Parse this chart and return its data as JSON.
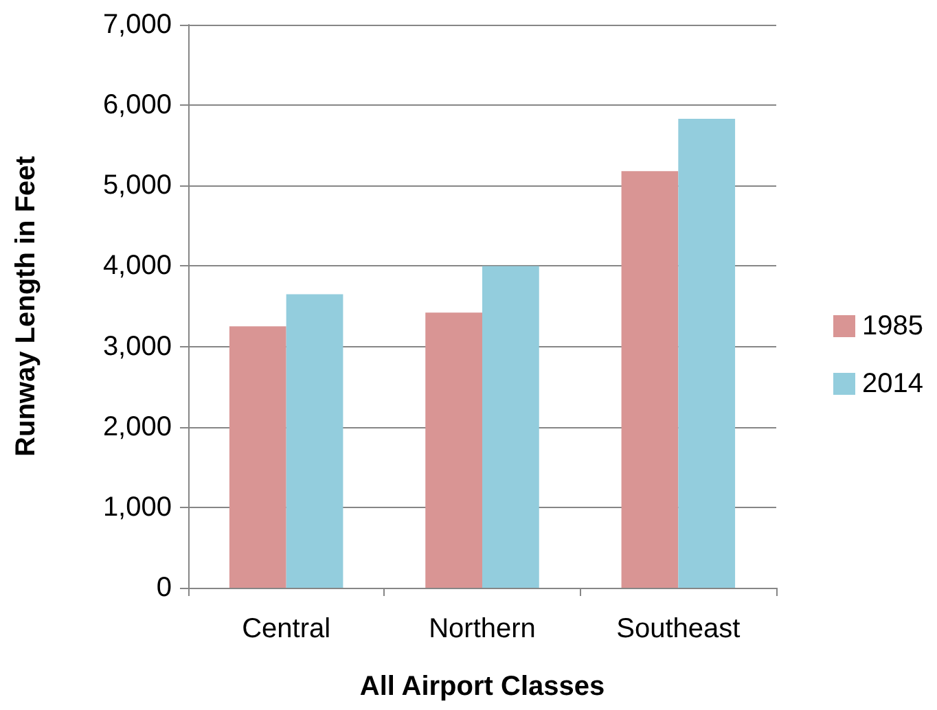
{
  "chart_data": {
    "type": "bar",
    "xlabel": "All Airport Classes",
    "ylabel": "Runway Length in Feet",
    "categories": [
      "Central",
      "Northern",
      "Southeast"
    ],
    "series": [
      {
        "name": "1985",
        "color": "#d99594",
        "values": [
          3250,
          3420,
          5180
        ]
      },
      {
        "name": "2014",
        "color": "#93cddd",
        "values": [
          3650,
          4000,
          5830
        ]
      }
    ],
    "ylim": [
      0,
      7000
    ],
    "yticks": [
      0,
      {
        "value": 1000,
        "label": "1,000"
      },
      {
        "value": 2000,
        "label": "2,000"
      },
      {
        "value": 3000,
        "label": "3,000"
      },
      {
        "value": 4000,
        "label": "4,000"
      },
      {
        "value": 5000,
        "label": "5,000"
      },
      {
        "value": 6000,
        "label": "6,000"
      },
      {
        "value": 7000,
        "label": "7,000"
      }
    ],
    "grid": "y",
    "legend": "right"
  }
}
